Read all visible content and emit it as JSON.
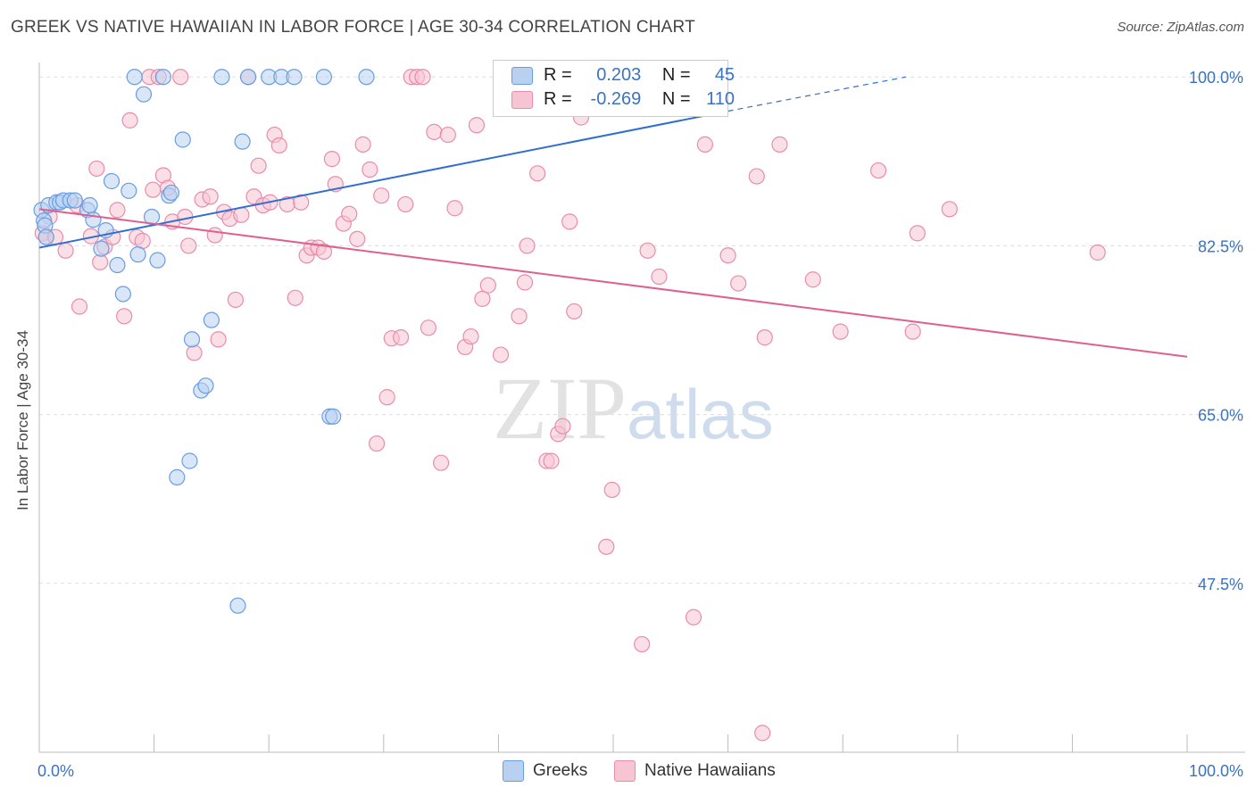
{
  "title": "GREEK VS NATIVE HAWAIIAN IN LABOR FORCE | AGE 30-34 CORRELATION CHART",
  "source": "Source: ZipAtlas.com",
  "watermark": {
    "zip": "ZIP",
    "atlas": "atlas"
  },
  "legend": {
    "r_label": "R =",
    "n_label": "N =",
    "greek": {
      "r": "0.203",
      "n": "45"
    },
    "hawaiian": {
      "r": "-0.269",
      "n": "110"
    }
  },
  "colors": {
    "greek_fill": "#b8d1f0",
    "greek_stroke": "#6a9de0",
    "greek_line": "#2f6fcf",
    "hawaiian_fill": "#f7c4d3",
    "hawaiian_stroke": "#e98cab",
    "hawaiian_line": "#e0608d",
    "tick_text": "#3a72c4"
  },
  "chart_data": {
    "type": "scatter",
    "title": "GREEK VS NATIVE HAWAIIAN IN LABOR FORCE | AGE 30-34 CORRELATION CHART",
    "xlabel": "",
    "ylabel": "In Labor Force | Age 30-34",
    "xlim": [
      0,
      100
    ],
    "ylim": [
      30,
      101.5
    ],
    "x_tick_labels": {
      "0": "0.0%",
      "100": "100.0%"
    },
    "y_ticks": [
      {
        "value": 100,
        "label": "100.0%"
      },
      {
        "value": 82.5,
        "label": "82.5%"
      },
      {
        "value": 65,
        "label": "65.0%"
      },
      {
        "value": 47.5,
        "label": "47.5%"
      }
    ],
    "grid": true,
    "legend_position": "bottom-center",
    "series": [
      {
        "name": "Greeks",
        "points": [
          [
            0.2,
            86.2
          ],
          [
            0.4,
            85.1
          ],
          [
            0.5,
            84.6
          ],
          [
            0.6,
            83.4
          ],
          [
            0.8,
            86.7
          ],
          [
            1.5,
            87.0
          ],
          [
            1.8,
            87.0
          ],
          [
            2.1,
            87.2
          ],
          [
            2.7,
            87.2
          ],
          [
            3.1,
            87.2
          ],
          [
            4.2,
            86.2
          ],
          [
            4.4,
            86.7
          ],
          [
            4.7,
            85.2
          ],
          [
            5.4,
            82.2
          ],
          [
            5.8,
            84.1
          ],
          [
            6.3,
            89.2
          ],
          [
            6.8,
            80.5
          ],
          [
            7.3,
            77.5
          ],
          [
            7.8,
            88.2
          ],
          [
            8.3,
            100
          ],
          [
            8.6,
            81.6
          ],
          [
            9.1,
            98.2
          ],
          [
            9.8,
            85.5
          ],
          [
            10.3,
            81.0
          ],
          [
            10.8,
            100
          ],
          [
            11.3,
            87.7
          ],
          [
            11.5,
            88.0
          ],
          [
            12.5,
            93.5
          ],
          [
            13.1,
            60.2
          ],
          [
            13.3,
            72.8
          ],
          [
            14.1,
            67.5
          ],
          [
            14.5,
            68.0
          ],
          [
            15.0,
            74.8
          ],
          [
            15.9,
            100
          ],
          [
            17.3,
            45.2
          ],
          [
            17.7,
            93.3
          ],
          [
            18.2,
            100
          ],
          [
            20.0,
            100
          ],
          [
            21.1,
            100
          ],
          [
            22.2,
            100
          ],
          [
            24.8,
            100
          ],
          [
            25.3,
            64.8
          ],
          [
            25.6,
            64.8
          ],
          [
            28.5,
            100
          ],
          [
            12.0,
            58.5
          ]
        ],
        "trend": {
          "x0": 0,
          "y0": 82.3,
          "x1": 100,
          "y1": 105.9,
          "solid_until": 60
        }
      },
      {
        "name": "Native Hawaiians",
        "points": [
          [
            0.3,
            83.8
          ],
          [
            0.6,
            83.4
          ],
          [
            0.9,
            85.5
          ],
          [
            1.4,
            83.4
          ],
          [
            2.3,
            82.0
          ],
          [
            3.3,
            86.7
          ],
          [
            3.5,
            76.2
          ],
          [
            4.5,
            83.5
          ],
          [
            5.0,
            90.5
          ],
          [
            5.3,
            80.8
          ],
          [
            5.7,
            82.4
          ],
          [
            6.4,
            83.4
          ],
          [
            6.8,
            86.2
          ],
          [
            7.4,
            75.2
          ],
          [
            7.9,
            95.5
          ],
          [
            8.5,
            83.4
          ],
          [
            9.0,
            83.0
          ],
          [
            9.6,
            100
          ],
          [
            9.9,
            88.3
          ],
          [
            10.4,
            100
          ],
          [
            10.8,
            89.8
          ],
          [
            11.2,
            88.5
          ],
          [
            11.6,
            85.0
          ],
          [
            12.3,
            100
          ],
          [
            12.7,
            85.5
          ],
          [
            13.0,
            82.5
          ],
          [
            13.5,
            71.4
          ],
          [
            14.2,
            87.3
          ],
          [
            14.9,
            87.6
          ],
          [
            15.3,
            83.6
          ],
          [
            15.6,
            72.8
          ],
          [
            16.1,
            86.0
          ],
          [
            16.6,
            85.3
          ],
          [
            17.1,
            76.9
          ],
          [
            17.6,
            85.7
          ],
          [
            18.2,
            100
          ],
          [
            18.7,
            87.6
          ],
          [
            19.1,
            90.8
          ],
          [
            19.5,
            86.7
          ],
          [
            20.1,
            87.0
          ],
          [
            20.5,
            94.0
          ],
          [
            20.9,
            92.9
          ],
          [
            21.6,
            86.8
          ],
          [
            22.3,
            77.1
          ],
          [
            22.8,
            87.0
          ],
          [
            23.3,
            81.5
          ],
          [
            23.7,
            82.3
          ],
          [
            24.3,
            82.3
          ],
          [
            24.8,
            81.9
          ],
          [
            25.5,
            91.5
          ],
          [
            25.8,
            88.9
          ],
          [
            26.5,
            84.8
          ],
          [
            27.0,
            85.8
          ],
          [
            27.7,
            83.2
          ],
          [
            28.2,
            93.0
          ],
          [
            28.8,
            90.4
          ],
          [
            29.4,
            62.0
          ],
          [
            29.8,
            87.7
          ],
          [
            30.3,
            66.8
          ],
          [
            30.7,
            72.9
          ],
          [
            31.5,
            73.0
          ],
          [
            31.9,
            86.8
          ],
          [
            32.4,
            100
          ],
          [
            32.9,
            100
          ],
          [
            33.4,
            100
          ],
          [
            33.9,
            74.0
          ],
          [
            34.4,
            94.3
          ],
          [
            35.0,
            60.0
          ],
          [
            35.6,
            94.0
          ],
          [
            36.2,
            86.4
          ],
          [
            37.1,
            72.0
          ],
          [
            37.6,
            73.1
          ],
          [
            38.1,
            95.0
          ],
          [
            38.6,
            77.0
          ],
          [
            39.1,
            78.4
          ],
          [
            40.2,
            71.2
          ],
          [
            41.8,
            75.2
          ],
          [
            42.3,
            78.7
          ],
          [
            42.5,
            82.5
          ],
          [
            43.4,
            90.0
          ],
          [
            44.2,
            60.2
          ],
          [
            44.6,
            60.2
          ],
          [
            45.2,
            63.0
          ],
          [
            45.6,
            63.8
          ],
          [
            46.2,
            85.0
          ],
          [
            46.6,
            75.7
          ],
          [
            47.2,
            95.8
          ],
          [
            48.6,
            100
          ],
          [
            49.4,
            51.3
          ],
          [
            49.9,
            57.2
          ],
          [
            50.7,
            99.0
          ],
          [
            52.0,
            100
          ],
          [
            52.5,
            41.2
          ],
          [
            53.0,
            82.0
          ],
          [
            54.0,
            79.3
          ],
          [
            57.0,
            44.0
          ],
          [
            58.0,
            93.0
          ],
          [
            60.0,
            81.5
          ],
          [
            60.9,
            78.6
          ],
          [
            62.5,
            89.7
          ],
          [
            63.2,
            73.0
          ],
          [
            64.5,
            93.0
          ],
          [
            67.4,
            79.0
          ],
          [
            69.8,
            73.6
          ],
          [
            73.1,
            90.3
          ],
          [
            76.1,
            73.6
          ],
          [
            76.5,
            83.8
          ],
          [
            79.3,
            86.3
          ],
          [
            92.2,
            81.8
          ],
          [
            63.0,
            32.0
          ]
        ],
        "trend": {
          "x0": 0,
          "y0": 86.3,
          "x1": 100,
          "y1": 71.0
        }
      }
    ]
  }
}
